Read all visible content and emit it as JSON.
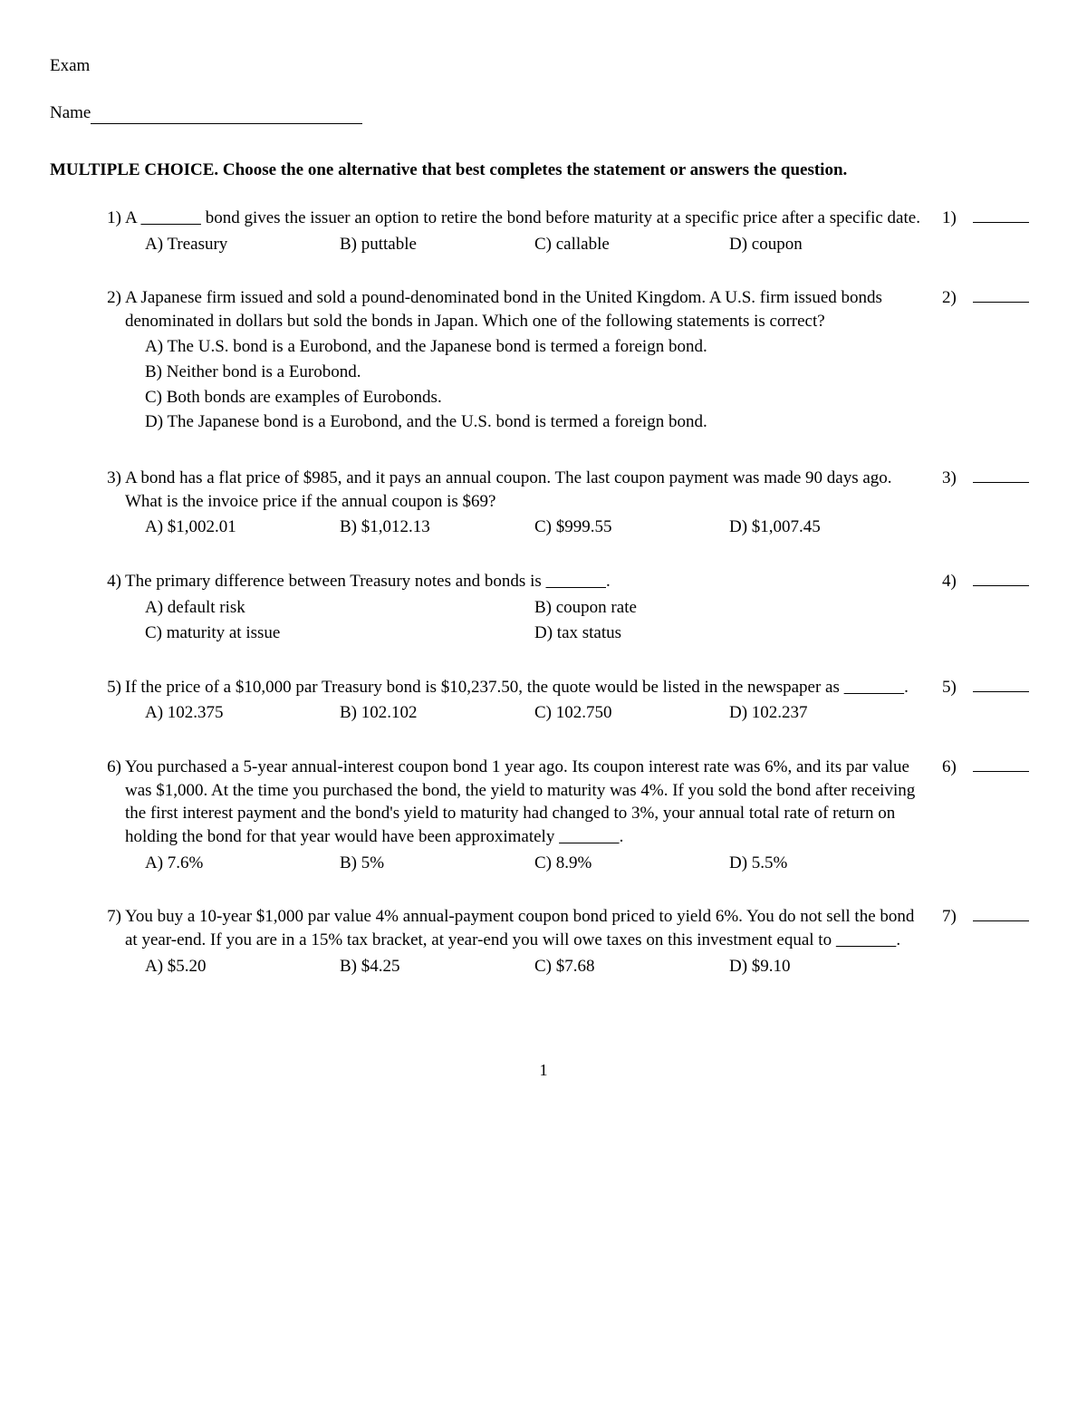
{
  "header": {
    "title_label": "Exam",
    "name_label": "Name"
  },
  "section_heading": "MULTIPLE CHOICE.  Choose the one alternative that best completes the statement or answers the question.",
  "questions": [
    {
      "num": "1)",
      "side_num": "1)",
      "stem_pre": "A ",
      "stem_post": " bond gives the issuer an option to retire the bond before maturity at a specific price after a specific date.",
      "layout": "row4",
      "choices": [
        "A) Treasury",
        "B) puttable",
        "C) callable",
        "D) coupon"
      ]
    },
    {
      "num": "2)",
      "side_num": "2)",
      "stem_pre": "A Japanese firm issued and sold a pound-denominated bond in the United Kingdom. A U.S. firm issued bonds denominated in dollars but sold the bonds in Japan. Which one of the following statements is correct?",
      "stem_post": "",
      "layout": "stack",
      "choices": [
        "A) The U.S. bond is a Eurobond, and the Japanese bond is termed a foreign bond.",
        "B) Neither bond is a Eurobond.",
        "C) Both bonds are examples of Eurobonds.",
        "D) The Japanese bond is a Eurobond, and the U.S. bond is termed a foreign bond."
      ]
    },
    {
      "num": "3)",
      "side_num": "3)",
      "stem_pre": "A bond has a flat price of $985, and it pays an annual coupon. The last coupon payment was made 90 days ago. What is the invoice price if the annual coupon is $69?",
      "stem_post": "",
      "layout": "row4",
      "choices": [
        "A) $1,002.01",
        "B) $1,012.13",
        "C) $999.55",
        "D) $1,007.45"
      ]
    },
    {
      "num": "4)",
      "side_num": "4)",
      "stem_pre": "The primary difference between Treasury notes and bonds is ",
      "stem_post": ".",
      "layout": "grid2x2",
      "choices": [
        "A) default risk",
        "B) coupon rate",
        "C) maturity at issue",
        "D) tax status"
      ]
    },
    {
      "num": "5)",
      "side_num": "5)",
      "stem_pre": "If the price of a $10,000 par Treasury bond is $10,237.50, the quote would be listed in the newspaper as ",
      "stem_post": ".",
      "layout": "row4",
      "choices": [
        "A) 102.375",
        "B) 102.102",
        "C) 102.750",
        "D) 102.237"
      ]
    },
    {
      "num": "6)",
      "side_num": "6)",
      "stem_pre": "You purchased a 5-year annual-interest coupon bond 1 year ago. Its coupon interest rate was 6%, and its par value was $1,000. At the time you purchased the bond, the yield to maturity was 4%. If you sold the bond after receiving the first interest payment and the bond's yield to maturity had changed to 3%, your annual total rate of return on holding the bond for that year would have been approximately ",
      "stem_post": ".",
      "layout": "row4",
      "choices": [
        "A) 7.6%",
        "B) 5%",
        "C) 8.9%",
        "D) 5.5%"
      ]
    },
    {
      "num": "7)",
      "side_num": "7)",
      "stem_pre": "You buy a 10-year $1,000 par value 4% annual-payment coupon bond priced to yield 6%. You do not sell the bond at year-end. If you are in a 15% tax bracket, at year-end you will owe taxes on this investment equal to ",
      "stem_post": ".",
      "layout": "row4",
      "choices": [
        "A) $5.20",
        "B) $4.25",
        "C) $7.68",
        "D) $9.10"
      ]
    }
  ],
  "blank_text": "                ",
  "page_number": "1"
}
